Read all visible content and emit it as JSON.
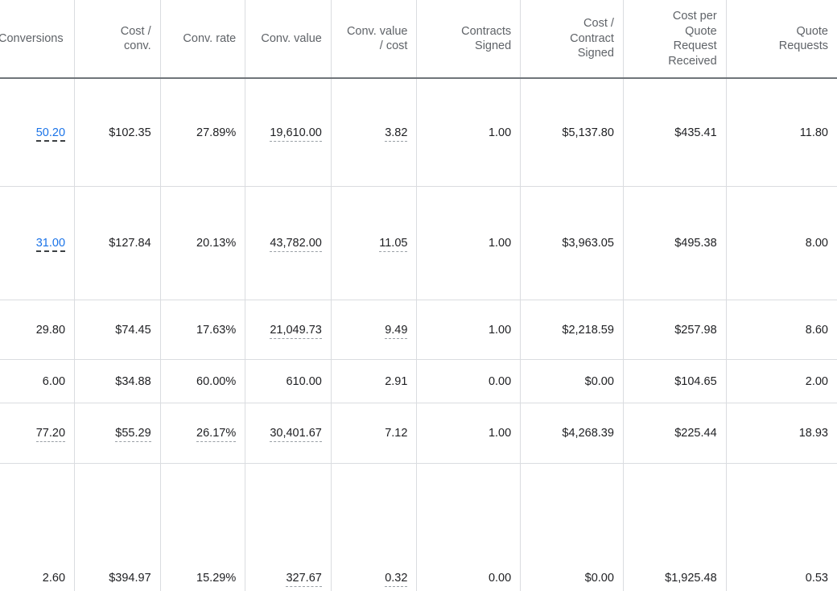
{
  "headers": {
    "conversions": "Conversions",
    "cost_conv": [
      "Cost /",
      "conv."
    ],
    "conv_rate": "Conv. rate",
    "conv_value": "Conv. value",
    "conv_value_cost": [
      "Conv. value",
      "/ cost"
    ],
    "contracts_signed": [
      "Contracts",
      "Signed"
    ],
    "cost_contract_signed": [
      "Cost /",
      "Contract",
      "Signed"
    ],
    "cost_per_quote": [
      "Cost per",
      "Quote",
      "Request",
      "Received"
    ],
    "quote_requests": [
      "Quote",
      "Requests"
    ]
  },
  "rows": [
    {
      "conversions": "50.20",
      "cost_conv": "$102.35",
      "conv_rate": "27.89%",
      "conv_value": "19,610.00",
      "conv_value_cost": "3.82",
      "contracts_signed": "1.00",
      "cost_contract_signed": "$5,137.80",
      "cost_per_quote": "$435.41",
      "quote_requests": "11.80"
    },
    {
      "conversions": "31.00",
      "cost_conv": "$127.84",
      "conv_rate": "20.13%",
      "conv_value": "43,782.00",
      "conv_value_cost": "11.05",
      "contracts_signed": "1.00",
      "cost_contract_signed": "$3,963.05",
      "cost_per_quote": "$495.38",
      "quote_requests": "8.00"
    },
    {
      "conversions": "29.80",
      "cost_conv": "$74.45",
      "conv_rate": "17.63%",
      "conv_value": "21,049.73",
      "conv_value_cost": "9.49",
      "contracts_signed": "1.00",
      "cost_contract_signed": "$2,218.59",
      "cost_per_quote": "$257.98",
      "quote_requests": "8.60"
    },
    {
      "conversions": "6.00",
      "cost_conv": "$34.88",
      "conv_rate": "60.00%",
      "conv_value": "610.00",
      "conv_value_cost": "2.91",
      "contracts_signed": "0.00",
      "cost_contract_signed": "$0.00",
      "cost_per_quote": "$104.65",
      "quote_requests": "2.00"
    },
    {
      "conversions": "77.20",
      "cost_conv": "$55.29",
      "conv_rate": "26.17%",
      "conv_value": "30,401.67",
      "conv_value_cost": "7.12",
      "contracts_signed": "1.00",
      "cost_contract_signed": "$4,268.39",
      "cost_per_quote": "$225.44",
      "quote_requests": "18.93"
    },
    {
      "conversions": "2.60",
      "cost_conv": "$394.97",
      "conv_rate": "15.29%",
      "conv_value": "327.67",
      "conv_value_cost": "0.32",
      "contracts_signed": "0.00",
      "cost_contract_signed": "$0.00",
      "cost_per_quote": "$1,925.48",
      "quote_requests": "0.53"
    }
  ],
  "colors": {
    "link": "#1a73e8",
    "header_text": "#5f6368",
    "grid": "#dadce0",
    "header_rule": "#70757a"
  }
}
